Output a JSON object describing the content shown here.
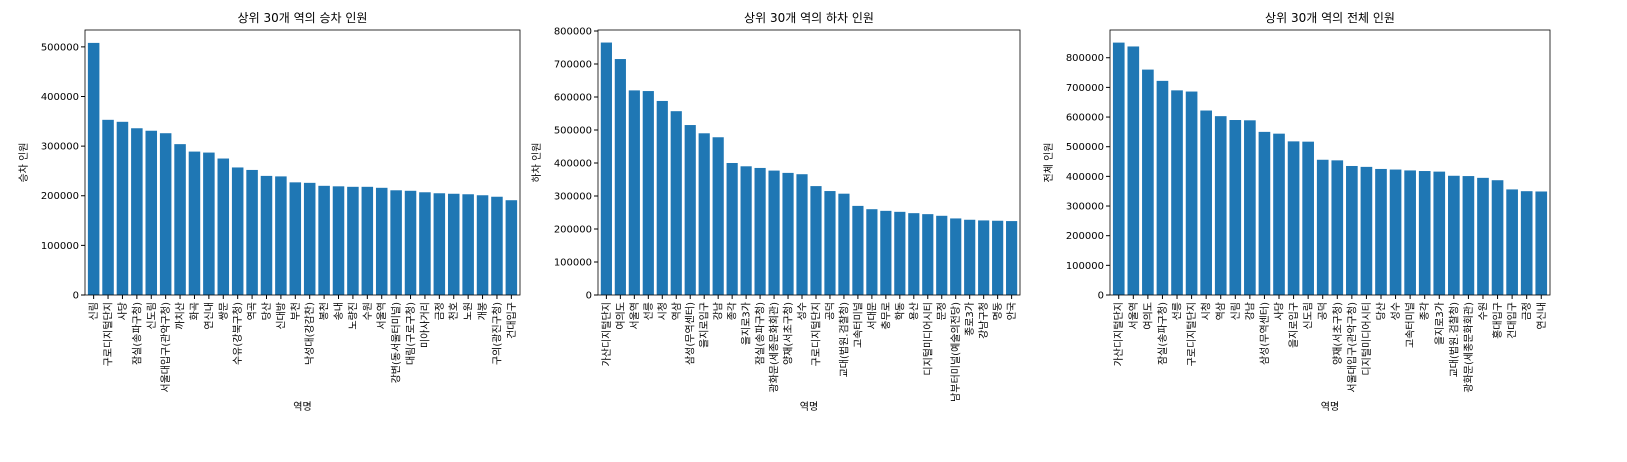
{
  "chart_data": [
    {
      "type": "bar",
      "title": "상위 30개 역의 승차 인원",
      "x_label": "역명",
      "y_label": "승차 인원",
      "color": "#1f77b4",
      "categories": [
        "신림",
        "구로디지털단지",
        "사당",
        "잠실(송파구청)",
        "신도림",
        "서울대입구(관악구청)",
        "까치산",
        "화곡",
        "연신내",
        "쌍문",
        "수유(강북구청)",
        "역곡",
        "당산",
        "신대방",
        "부천",
        "낙성대(강감찬)",
        "봉천",
        "송내",
        "노량진",
        "수원",
        "서울역",
        "강변(동서울터미널)",
        "대림(구로구청)",
        "미아사거리",
        "금정",
        "천호",
        "노원",
        "개봉",
        "구의(광진구청)",
        "건대입구"
      ],
      "values": [
        508000,
        353000,
        349000,
        336000,
        331000,
        326000,
        304000,
        289000,
        287000,
        275000,
        257000,
        252000,
        240000,
        239000,
        227000,
        226000,
        220000,
        219000,
        218000,
        218000,
        216000,
        211000,
        210000,
        207000,
        205000,
        204000,
        203000,
        201000,
        198000,
        191000
      ],
      "ylim": [
        0,
        534000
      ],
      "yticks": [
        0,
        100000,
        200000,
        300000,
        400000,
        500000
      ]
    },
    {
      "type": "bar",
      "title": "상위 30개 역의 하차 인원",
      "x_label": "역명",
      "y_label": "하차 인원",
      "color": "#1f77b4",
      "categories": [
        "가산디지털단지",
        "여의도",
        "서울역",
        "선릉",
        "시청",
        "역삼",
        "삼성(무역센터)",
        "을지로입구",
        "강남",
        "종각",
        "을지로3가",
        "잠실(송파구청)",
        "광화문(세종문화회관)",
        "양재(서초구청)",
        "성수",
        "구로디지털단지",
        "공덕",
        "교대(법원.검찰청)",
        "고속터미널",
        "서대문",
        "충무로",
        "학동",
        "용산",
        "디지털미디어시티",
        "문정",
        "남부터미널(예술의전당)",
        "종로3가",
        "강남구청",
        "명동",
        "안국"
      ],
      "values": [
        765000,
        715000,
        620000,
        618000,
        588000,
        557000,
        515000,
        490000,
        478000,
        400000,
        390000,
        385000,
        377000,
        370000,
        366000,
        330000,
        315000,
        307000,
        270000,
        260000,
        255000,
        252000,
        248000,
        245000,
        240000,
        232000,
        228000,
        226000,
        225000,
        224000
      ],
      "ylim": [
        0,
        803000
      ],
      "yticks": [
        0,
        100000,
        200000,
        300000,
        400000,
        500000,
        600000,
        700000,
        800000
      ]
    },
    {
      "type": "bar",
      "title": "상위 30개 역의 전체 인원",
      "x_label": "역명",
      "y_label": "전체 인원",
      "color": "#1f77b4",
      "categories": [
        "가산디지털단지",
        "서울역",
        "여의도",
        "잠실(송파구청)",
        "선릉",
        "구로디지털단지",
        "시청",
        "역삼",
        "신림",
        "강남",
        "삼성(무역센터)",
        "사당",
        "을지로입구",
        "신도림",
        "공덕",
        "양재(서초구청)",
        "서울대입구(관악구청)",
        "디지털미디어시티",
        "당산",
        "성수",
        "고속터미널",
        "종각",
        "을지로3가",
        "교대(법원.검찰청)",
        "광화문(세종문화회관)",
        "수원",
        "홍대입구",
        "건대입구",
        "금정",
        "연신내"
      ],
      "values": [
        851000,
        838000,
        760000,
        722000,
        690000,
        686000,
        622000,
        603000,
        590000,
        589000,
        550000,
        544000,
        518000,
        517000,
        456000,
        454000,
        435000,
        432000,
        425000,
        423000,
        420000,
        418000,
        416000,
        402000,
        401000,
        395000,
        387000,
        356000,
        350000,
        349000
      ],
      "ylim": [
        0,
        893500
      ],
      "yticks": [
        0,
        100000,
        200000,
        300000,
        400000,
        500000,
        600000,
        700000,
        800000
      ]
    }
  ]
}
